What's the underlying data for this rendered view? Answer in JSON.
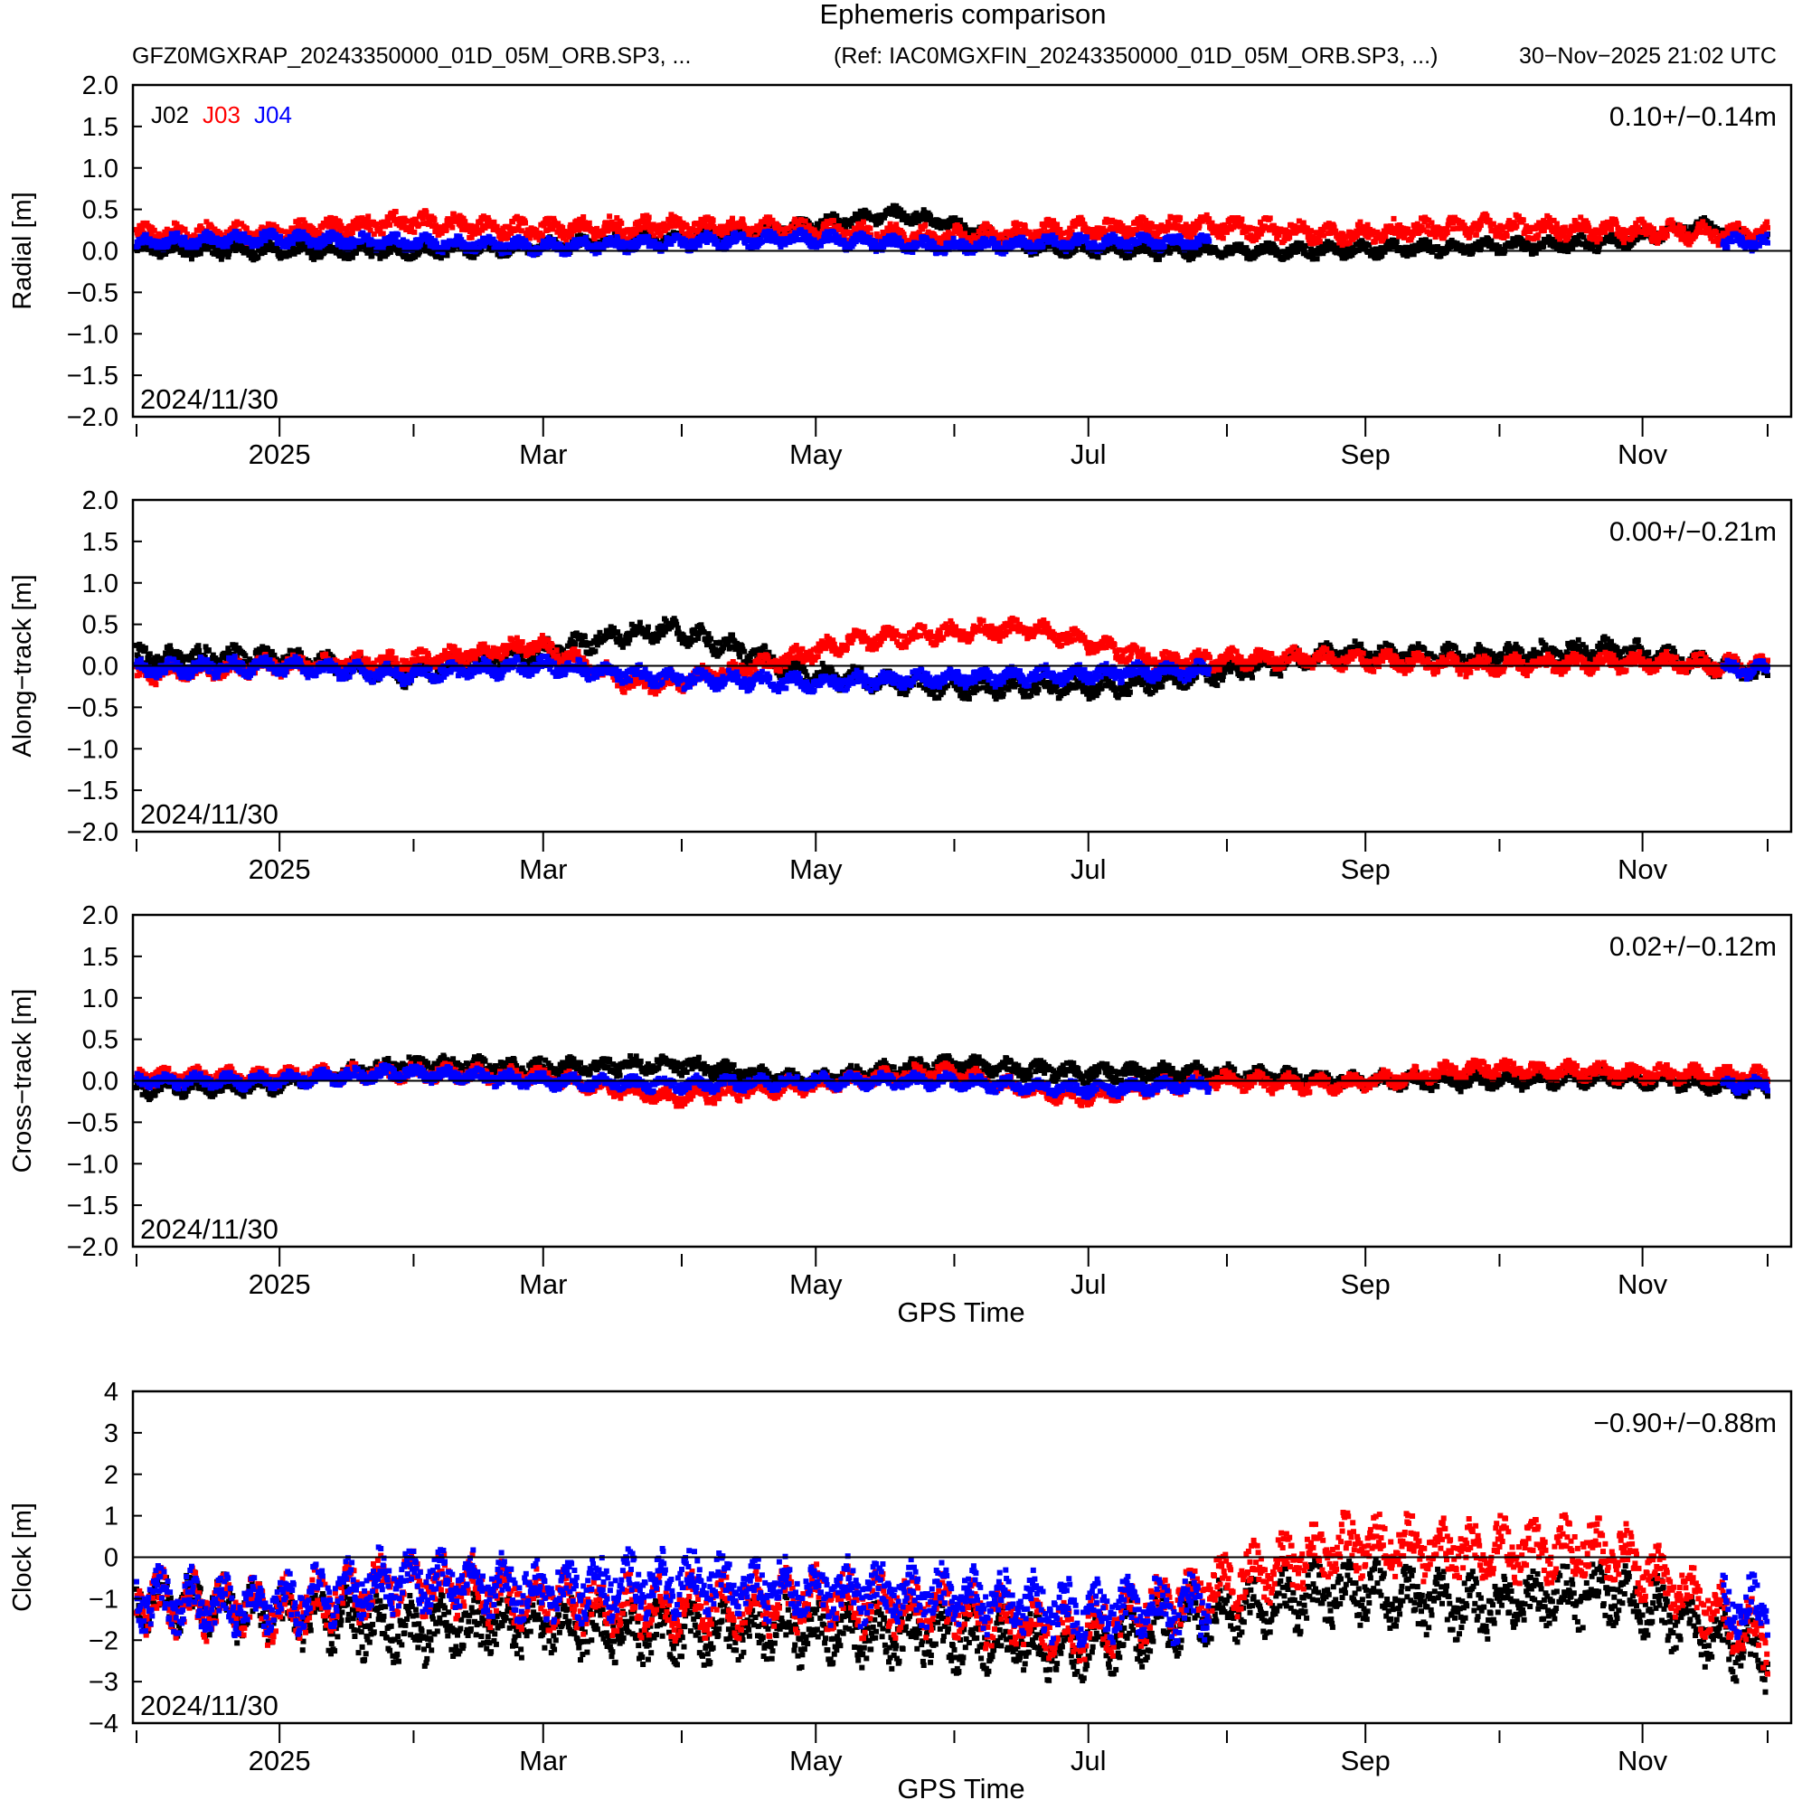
{
  "header": {
    "title": "Ephemeris comparison",
    "left_file": "GFZ0MGXRAP_20243350000_01D_05M_ORB.SP3, ...",
    "ref_file": "(Ref: IAC0MGXFIN_20243350000_01D_05M_ORB.SP3, ...)",
    "generated": "30−Nov−2025 21:02 UTC"
  },
  "colors": {
    "J02": "#000000",
    "J03": "#ff0000",
    "J04": "#0000ff"
  },
  "legend": [
    "J02",
    "J03",
    "J04"
  ],
  "x_tick_labels": [
    "2025",
    "Mar",
    "May",
    "Jul",
    "Sep",
    "Nov"
  ],
  "xlabel": "GPS Time",
  "chart_data": [
    {
      "type": "scatter",
      "ylabel": "Radial [m]",
      "ylim": [
        -2.0,
        2.0
      ],
      "yticks": [
        "2.0",
        "1.5",
        "1.0",
        "0.5",
        "0.0",
        "−0.5",
        "−1.0",
        "−1.5",
        "−2.0"
      ],
      "stat": "0.10+/−0.14m",
      "start_label": "2024/11/30",
      "show_legend": true,
      "show_xlabel": false,
      "x_range_days": [
        0,
        365
      ],
      "series": [
        {
          "name": "J02",
          "x": [
            0,
            30,
            60,
            90,
            120,
            150,
            170,
            180,
            200,
            230,
            260,
            300,
            330,
            350,
            365
          ],
          "y": [
            0.02,
            0.0,
            0.0,
            0.05,
            0.15,
            0.3,
            0.45,
            0.35,
            0.05,
            0.0,
            0.0,
            0.05,
            0.1,
            0.3,
            0.1
          ],
          "spread": 0.1
        },
        {
          "name": "J03",
          "x": [
            0,
            30,
            60,
            90,
            120,
            150,
            180,
            210,
            240,
            270,
            300,
            330,
            365
          ],
          "y": [
            0.2,
            0.2,
            0.35,
            0.25,
            0.3,
            0.25,
            0.15,
            0.25,
            0.3,
            0.2,
            0.3,
            0.25,
            0.2
          ],
          "spread": 0.14
        },
        {
          "name": "J04",
          "x": [
            0,
            30,
            60,
            90,
            120,
            150,
            180,
            210,
            240
          ],
          "y": [
            0.1,
            0.15,
            0.1,
            0.05,
            0.1,
            0.15,
            0.05,
            0.1,
            0.1
          ],
          "spread": 0.1,
          "extra_x": [
            355,
            365
          ]
        }
      ]
    },
    {
      "type": "scatter",
      "ylabel": "Along−track [m]",
      "ylim": [
        -2.0,
        2.0
      ],
      "yticks": [
        "2.0",
        "1.5",
        "1.0",
        "0.5",
        "0.0",
        "−0.5",
        "−1.0",
        "−1.5",
        "−2.0"
      ],
      "stat": "0.00+/−0.21m",
      "start_label": "2024/11/30",
      "show_legend": false,
      "show_xlabel": false,
      "x_range_days": [
        0,
        365
      ],
      "series": [
        {
          "name": "J02",
          "x": [
            0,
            30,
            60,
            90,
            110,
            120,
            140,
            150,
            170,
            180,
            200,
            220,
            240,
            270,
            300,
            330,
            365
          ],
          "y": [
            0.1,
            0.1,
            -0.1,
            0.15,
            0.4,
            0.45,
            0.1,
            -0.1,
            -0.2,
            -0.25,
            -0.25,
            -0.25,
            -0.1,
            0.15,
            0.1,
            0.2,
            -0.1
          ],
          "spread": 0.15
        },
        {
          "name": "J03",
          "x": [
            0,
            30,
            60,
            90,
            110,
            120,
            140,
            160,
            180,
            200,
            230,
            260,
            300,
            330,
            365
          ],
          "y": [
            -0.1,
            0.0,
            0.05,
            0.25,
            -0.2,
            -0.2,
            0.0,
            0.3,
            0.4,
            0.45,
            0.05,
            0.1,
            0.0,
            0.05,
            0.0
          ],
          "spread": 0.13
        },
        {
          "name": "J04",
          "x": [
            0,
            30,
            60,
            90,
            120,
            150,
            180,
            210,
            240
          ],
          "y": [
            -0.05,
            0.0,
            -0.1,
            0.0,
            -0.15,
            -0.2,
            -0.15,
            -0.1,
            -0.05
          ],
          "spread": 0.12,
          "extra_x": [
            355,
            365
          ]
        }
      ]
    },
    {
      "type": "scatter",
      "ylabel": "Cross−track [m]",
      "ylim": [
        -2.0,
        2.0
      ],
      "yticks": [
        "2.0",
        "1.5",
        "1.0",
        "0.5",
        "0.0",
        "−0.5",
        "−1.0",
        "−1.5",
        "−2.0"
      ],
      "stat": "0.02+/−0.12m",
      "start_label": "2024/11/30",
      "show_legend": false,
      "show_xlabel": true,
      "x_range_days": [
        0,
        365
      ],
      "series": [
        {
          "name": "J02",
          "x": [
            0,
            30,
            60,
            90,
            120,
            150,
            180,
            210,
            240,
            270,
            300,
            330,
            365
          ],
          "y": [
            -0.1,
            -0.05,
            0.2,
            0.15,
            0.2,
            0.0,
            0.2,
            0.1,
            0.1,
            0.0,
            0.0,
            0.05,
            -0.1
          ],
          "spread": 0.12
        },
        {
          "name": "J03",
          "x": [
            0,
            30,
            60,
            90,
            120,
            150,
            180,
            210,
            240,
            270,
            300,
            330,
            365
          ],
          "y": [
            0.05,
            0.05,
            0.1,
            0.05,
            -0.2,
            -0.05,
            0.1,
            -0.2,
            0.0,
            -0.05,
            0.15,
            0.1,
            0.05
          ],
          "spread": 0.12
        },
        {
          "name": "J04",
          "x": [
            0,
            30,
            60,
            90,
            120,
            150,
            180,
            210,
            240
          ],
          "y": [
            0.0,
            0.0,
            0.1,
            0.0,
            -0.05,
            0.0,
            0.0,
            -0.1,
            -0.05
          ],
          "spread": 0.1,
          "extra_x": [
            355,
            365
          ]
        }
      ]
    },
    {
      "type": "scatter",
      "ylabel": "Clock [m]",
      "ylim": [
        -4,
        4
      ],
      "yticks": [
        "4",
        "3",
        "2",
        "1",
        "0",
        "−1",
        "−2",
        "−3",
        "−4"
      ],
      "stat": "−0.90+/−0.88m",
      "start_label": "2024/11/30",
      "show_legend": false,
      "show_xlabel": true,
      "x_range_days": [
        0,
        365
      ],
      "series": [
        {
          "name": "J02",
          "x": [
            0,
            30,
            60,
            90,
            120,
            150,
            180,
            210,
            240,
            270,
            300,
            330,
            365
          ],
          "y": [
            -1.0,
            -1.3,
            -1.8,
            -1.6,
            -1.8,
            -1.8,
            -1.9,
            -2.2,
            -1.4,
            -0.8,
            -1.2,
            -0.8,
            -2.5
          ],
          "spread": 0.8
        },
        {
          "name": "J03",
          "x": [
            0,
            30,
            60,
            90,
            120,
            150,
            180,
            210,
            240,
            270,
            300,
            330,
            365
          ],
          "y": [
            -1.0,
            -1.3,
            -0.6,
            -1.0,
            -1.2,
            -1.0,
            -1.2,
            -1.8,
            -0.8,
            0.3,
            0.2,
            0.2,
            -2.0
          ],
          "spread": 0.8
        },
        {
          "name": "J04",
          "x": [
            0,
            30,
            60,
            90,
            120,
            150,
            180,
            210,
            240
          ],
          "y": [
            -1.0,
            -1.2,
            -0.5,
            -0.8,
            -0.6,
            -0.8,
            -0.9,
            -1.3,
            -1.2
          ],
          "spread": 0.8,
          "extra_x": [
            355,
            365
          ]
        }
      ]
    }
  ]
}
